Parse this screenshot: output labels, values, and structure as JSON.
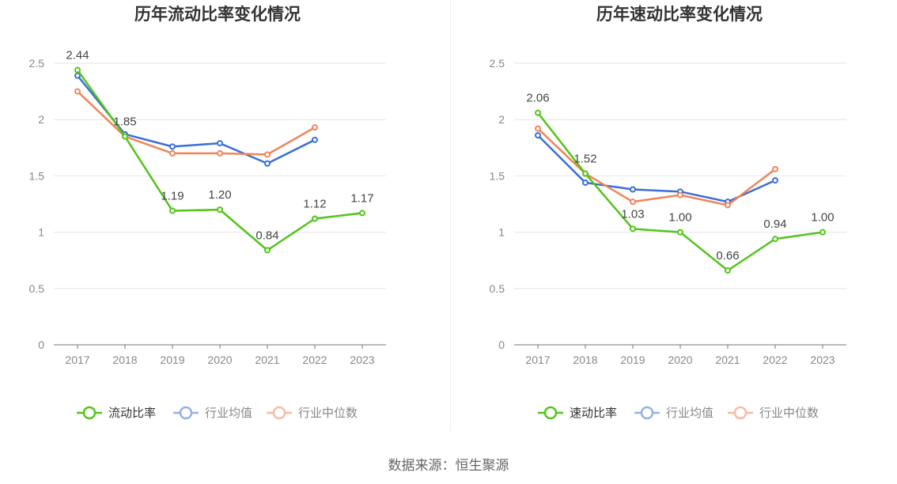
{
  "chart_data": [
    {
      "type": "line",
      "title": "历年流动比率变化情况",
      "categories": [
        "2017",
        "2018",
        "2019",
        "2020",
        "2021",
        "2022",
        "2023"
      ],
      "ylim": [
        0,
        2.5
      ],
      "yticks": [
        "0",
        "0.5",
        "1",
        "1.5",
        "2",
        "2.5"
      ],
      "grid": true,
      "legend_position": "bottom",
      "series": [
        {
          "name": "流动比率",
          "color": "#52c41a",
          "values": [
            2.44,
            1.85,
            1.19,
            1.2,
            0.84,
            1.12,
            1.17
          ],
          "labels": [
            "2.44",
            "1.85",
            "1.19",
            "1.20",
            "0.84",
            "1.12",
            "1.17"
          ]
        },
        {
          "name": "行业均值",
          "color": "#3a6fd8",
          "values": [
            2.39,
            1.87,
            1.76,
            1.79,
            1.61,
            1.82,
            null
          ]
        },
        {
          "name": "行业中位数",
          "color": "#f0845a",
          "values": [
            2.25,
            1.85,
            1.7,
            1.7,
            1.69,
            1.93,
            null
          ]
        }
      ]
    },
    {
      "type": "line",
      "title": "历年速动比率变化情况",
      "categories": [
        "2017",
        "2018",
        "2019",
        "2020",
        "2021",
        "2022",
        "2023"
      ],
      "ylim": [
        0,
        2.5
      ],
      "yticks": [
        "0",
        "0.5",
        "1",
        "1.5",
        "2",
        "2.5"
      ],
      "grid": true,
      "legend_position": "bottom",
      "series": [
        {
          "name": "速动比率",
          "color": "#52c41a",
          "values": [
            2.06,
            1.52,
            1.03,
            1.0,
            0.66,
            0.94,
            1.0
          ],
          "labels": [
            "2.06",
            "1.52",
            "1.03",
            "1.00",
            "0.66",
            "0.94",
            "1.00"
          ]
        },
        {
          "name": "行业均值",
          "color": "#3a6fd8",
          "values": [
            1.86,
            1.44,
            1.38,
            1.36,
            1.27,
            1.46,
            null
          ]
        },
        {
          "name": "行业中位数",
          "color": "#f0845a",
          "values": [
            1.92,
            1.52,
            1.27,
            1.33,
            1.24,
            1.56,
            null
          ]
        }
      ]
    }
  ],
  "source": "数据来源：恒生聚源"
}
